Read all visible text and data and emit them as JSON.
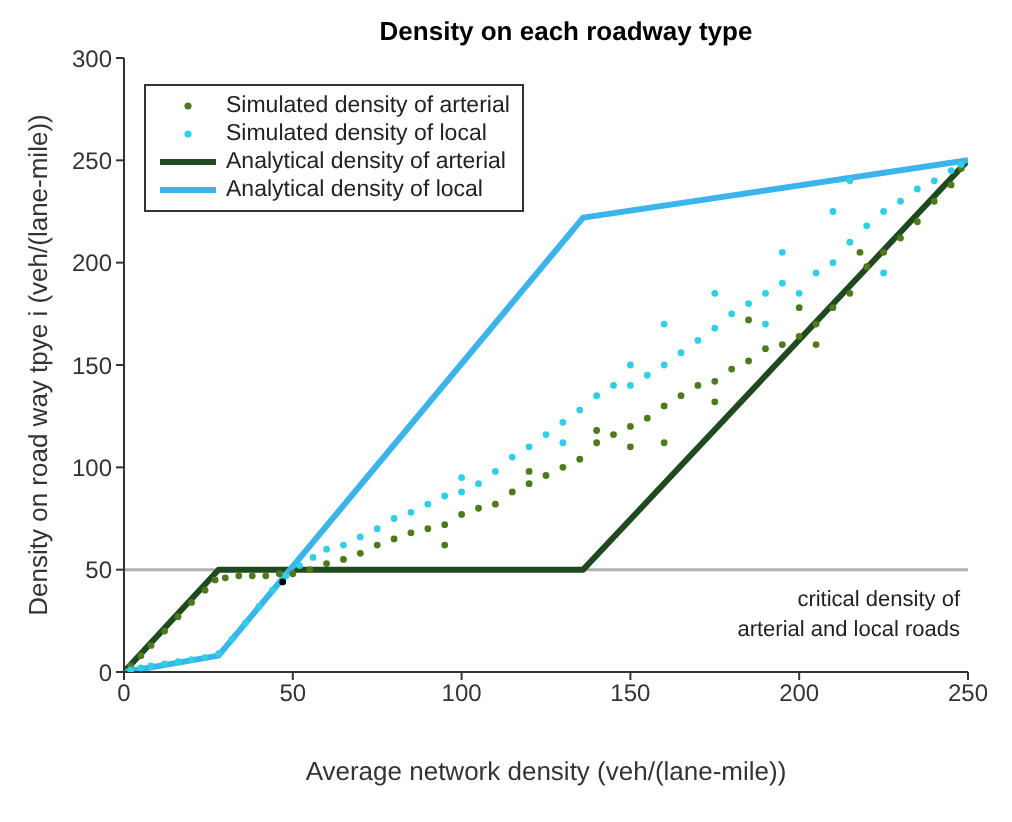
{
  "chart_data": {
    "type": "scatter",
    "title": "Density on each roadway type",
    "xlabel": "Average network density (veh/(lane-mile))",
    "ylabel": "Density on road way tpye i (veh/(lane-mile))",
    "xlim": [
      0,
      250
    ],
    "ylim": [
      0,
      300
    ],
    "xticks": [
      0,
      50,
      100,
      150,
      200,
      250
    ],
    "yticks": [
      0,
      50,
      100,
      150,
      200,
      250,
      300
    ],
    "grid": false,
    "legend": "top left",
    "series": [
      {
        "name": "Simulated density of arterial",
        "marker": "circle",
        "color": "#4f7a1c",
        "x": [
          2,
          5,
          8,
          12,
          16,
          20,
          24,
          27,
          30,
          34,
          38,
          42,
          46,
          50,
          55,
          60,
          65,
          70,
          75,
          80,
          85,
          90,
          95,
          100,
          105,
          110,
          115,
          120,
          125,
          130,
          135,
          140,
          145,
          150,
          155,
          160,
          165,
          170,
          175,
          180,
          185,
          190,
          195,
          200,
          205,
          210,
          215,
          220,
          225,
          230,
          235,
          240,
          245,
          248,
          95,
          150,
          175,
          185,
          205,
          160,
          120,
          140,
          200,
          218
        ],
        "values": [
          3,
          8,
          13,
          20,
          27,
          34,
          40,
          45,
          46,
          47,
          47,
          47,
          48,
          48,
          50,
          53,
          55,
          58,
          62,
          65,
          68,
          70,
          72,
          77,
          80,
          82,
          88,
          92,
          96,
          100,
          104,
          112,
          116,
          120,
          124,
          130,
          135,
          140,
          142,
          148,
          152,
          158,
          160,
          164,
          170,
          178,
          185,
          198,
          205,
          212,
          220,
          230,
          238,
          246,
          62,
          110,
          132,
          172,
          160,
          112,
          98,
          118,
          178,
          205
        ]
      },
      {
        "name": "Simulated density of local",
        "marker": "circle",
        "color": "#2fcfe8",
        "x": [
          2,
          5,
          8,
          12,
          16,
          20,
          24,
          28,
          32,
          36,
          40,
          44,
          48,
          52,
          56,
          60,
          65,
          70,
          75,
          80,
          85,
          90,
          95,
          100,
          105,
          110,
          115,
          120,
          125,
          130,
          135,
          140,
          145,
          150,
          155,
          160,
          165,
          170,
          175,
          180,
          185,
          190,
          195,
          200,
          205,
          210,
          215,
          220,
          225,
          230,
          235,
          240,
          245,
          248,
          100,
          130,
          160,
          175,
          195,
          210,
          150,
          190,
          225,
          215
        ],
        "values": [
          1,
          2,
          3,
          4,
          5,
          6,
          7,
          9,
          16,
          24,
          32,
          40,
          47,
          52,
          56,
          60,
          62,
          66,
          70,
          75,
          78,
          82,
          86,
          88,
          92,
          98,
          105,
          110,
          116,
          122,
          128,
          135,
          140,
          140,
          145,
          150,
          156,
          162,
          168,
          175,
          180,
          185,
          190,
          185,
          195,
          200,
          210,
          218,
          225,
          230,
          236,
          240,
          245,
          248,
          95,
          112,
          170,
          185,
          205,
          225,
          150,
          170,
          195,
          240
        ]
      },
      {
        "name": "Analytical density of arterial",
        "type": "line",
        "color": "#1f4a1f",
        "x": [
          0,
          28,
          136,
          250
        ],
        "values": [
          0,
          50,
          50,
          250
        ]
      },
      {
        "name": "Analytical density of local",
        "type": "line",
        "color": "#3ab4ea",
        "x": [
          0,
          28,
          136,
          250
        ],
        "values": [
          0,
          8,
          222,
          250
        ]
      },
      {
        "marker": "circle",
        "color": "#000000",
        "x": [
          47
        ],
        "values": [
          44
        ]
      }
    ],
    "ref_lines": [
      {
        "axis": "y",
        "value": 50,
        "label": "critical density of arterial and local roads",
        "color": "#b0b0b0"
      }
    ]
  }
}
